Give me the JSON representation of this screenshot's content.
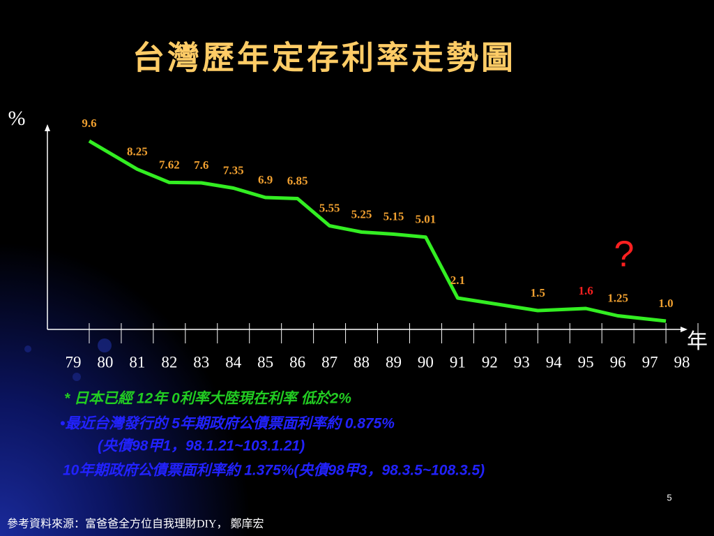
{
  "title": "台灣歷年定存利率走勢圖",
  "chart_data": {
    "type": "line",
    "y_label": "%",
    "x_label": "年",
    "annotation": "?",
    "x": [
      79.5,
      81,
      82,
      83,
      84,
      85,
      86,
      87,
      88,
      89,
      90,
      91,
      93.5,
      95,
      96,
      97.5
    ],
    "values": [
      9.6,
      8.25,
      7.62,
      7.6,
      7.35,
      6.9,
      6.85,
      5.55,
      5.25,
      5.15,
      5.01,
      2.1,
      1.5,
      1.6,
      1.25,
      1.0
    ],
    "value_labels": [
      "9.6",
      "8.25",
      "7.62",
      "7.6",
      "7.35",
      "6.9",
      "6.85",
      "5.55",
      "5.25",
      "5.15",
      "5.01",
      "2.1",
      "1.5",
      "1.6",
      "1.25",
      "1.0"
    ],
    "label_colors": [
      "#f0a030",
      "#f0a030",
      "#f0a030",
      "#f0a030",
      "#f0a030",
      "#f0a030",
      "#f0a030",
      "#f0a030",
      "#f0a030",
      "#f0a030",
      "#f0a030",
      "#f0a030",
      "#f0a030",
      "#ff2020",
      "#f0a030",
      "#f0a030"
    ],
    "color": "#33ee22",
    "xlim": [
      78.5,
      98.5
    ],
    "xticks": [
      79,
      80,
      81,
      82,
      83,
      84,
      85,
      86,
      87,
      88,
      89,
      90,
      91,
      92,
      93,
      94,
      95,
      96,
      97,
      98
    ],
    "ylim": [
      0,
      10
    ]
  },
  "notes": [
    "* 日本已經 12年 0利率大陸現在利率 低於2%",
    "•最近台灣發行的 5年期政府公債票面利率約 0.875%",
    "(央債98甲1，98.1.21~103.1.21)",
    "10年期政府公債票面利率約 1.375%(央債98甲3，98.3.5~108.3.5)"
  ],
  "page": 5,
  "source": "參考資料來源：富爸爸全方位自我理財DIY， 鄭庠宏"
}
